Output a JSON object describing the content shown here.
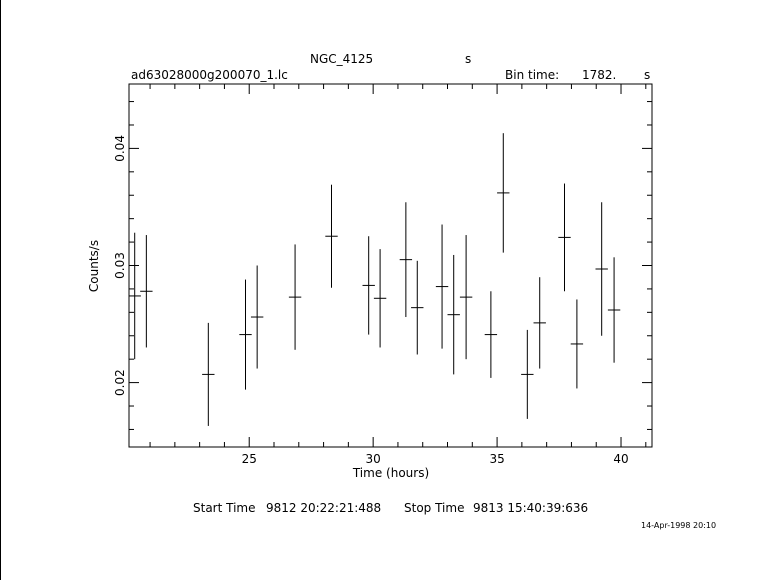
{
  "header": {
    "object": "NGC_4125",
    "unit_mark": "s",
    "filename": "ad63028000g200070_1.lc",
    "bin_time_label": "Bin time:",
    "bin_time_value": "1782.",
    "bin_time_unit": "s"
  },
  "footer": {
    "start_label": "Start Time",
    "start_value": "9812 20:22:21:488",
    "stop_label": "Stop Time",
    "stop_value": "9813 15:40:39:636",
    "date_stamp": "14-Apr-1998 20:10"
  },
  "chart_data": {
    "type": "scatter",
    "xlabel": "Time (hours)",
    "ylabel": "Counts/s",
    "xlim": [
      20.15,
      41.25
    ],
    "ylim": [
      0.0145,
      0.0455
    ],
    "x_ticks": [
      25,
      30,
      35,
      40
    ],
    "y_ticks": [
      0.02,
      0.03,
      0.04
    ],
    "grid": false,
    "points": [
      {
        "x": 20.38,
        "xerr": 0.25,
        "y": 0.0274,
        "yerr": 0.0054
      },
      {
        "x": 20.85,
        "xerr": 0.25,
        "y": 0.0278,
        "yerr": 0.0048
      },
      {
        "x": 23.35,
        "xerr": 0.25,
        "y": 0.0207,
        "yerr": 0.0044
      },
      {
        "x": 24.85,
        "xerr": 0.25,
        "y": 0.0241,
        "yerr": 0.0047
      },
      {
        "x": 25.32,
        "xerr": 0.25,
        "y": 0.0256,
        "yerr": 0.0044
      },
      {
        "x": 26.85,
        "xerr": 0.25,
        "y": 0.0273,
        "yerr": 0.0045
      },
      {
        "x": 28.32,
        "xerr": 0.25,
        "y": 0.0325,
        "yerr": 0.0044
      },
      {
        "x": 29.82,
        "xerr": 0.25,
        "y": 0.0283,
        "yerr": 0.0042
      },
      {
        "x": 30.28,
        "xerr": 0.25,
        "y": 0.0272,
        "yerr": 0.0042
      },
      {
        "x": 31.32,
        "xerr": 0.25,
        "y": 0.0305,
        "yerr": 0.0049
      },
      {
        "x": 31.78,
        "xerr": 0.25,
        "y": 0.0264,
        "yerr": 0.004
      },
      {
        "x": 32.78,
        "xerr": 0.25,
        "y": 0.0282,
        "yerr": 0.0053
      },
      {
        "x": 33.25,
        "xerr": 0.25,
        "y": 0.0258,
        "yerr": 0.0051
      },
      {
        "x": 33.75,
        "xerr": 0.25,
        "y": 0.0273,
        "yerr": 0.0053
      },
      {
        "x": 34.75,
        "xerr": 0.25,
        "y": 0.0241,
        "yerr": 0.0037
      },
      {
        "x": 35.25,
        "xerr": 0.25,
        "y": 0.0362,
        "yerr": 0.0051
      },
      {
        "x": 36.22,
        "xerr": 0.25,
        "y": 0.0207,
        "yerr": 0.0038
      },
      {
        "x": 36.72,
        "xerr": 0.25,
        "y": 0.0251,
        "yerr": 0.0039
      },
      {
        "x": 37.72,
        "xerr": 0.25,
        "y": 0.0324,
        "yerr": 0.0046
      },
      {
        "x": 38.22,
        "xerr": 0.25,
        "y": 0.0233,
        "yerr": 0.0038
      },
      {
        "x": 39.22,
        "xerr": 0.25,
        "y": 0.0297,
        "yerr": 0.0057
      },
      {
        "x": 39.72,
        "xerr": 0.25,
        "y": 0.0262,
        "yerr": 0.0045
      }
    ]
  }
}
